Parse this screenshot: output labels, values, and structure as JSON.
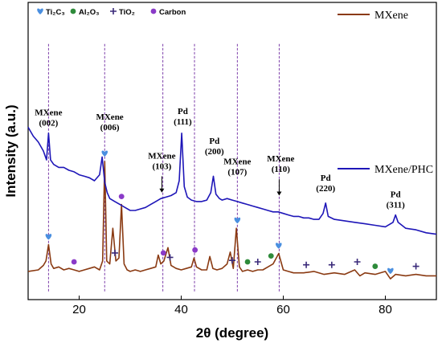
{
  "chart_data": {
    "type": "line",
    "xlabel": "2θ (degree)",
    "ylabel": "Intensity (a.u.)",
    "xlim": [
      10,
      90
    ],
    "xticks": [
      "20",
      "40",
      "60",
      "80"
    ],
    "xtick_values": [
      20,
      40,
      60,
      80
    ],
    "series": [
      {
        "name": "MXene",
        "color": "#8a3a12",
        "x": [
          10,
          12,
          13,
          13.5,
          14,
          14.5,
          15,
          16,
          17,
          18,
          19,
          20,
          21,
          22,
          23,
          24,
          24.6,
          25,
          25.4,
          26,
          26.6,
          27.2,
          27.8,
          28.3,
          28.8,
          29.4,
          30,
          31,
          32,
          33,
          34,
          35,
          35.5,
          36,
          36.6,
          37.4,
          38,
          39,
          40,
          41,
          42,
          42.5,
          43,
          44,
          45,
          45.6,
          46.2,
          47,
          48,
          49,
          49.6,
          50.2,
          50.8,
          51.4,
          52,
          53,
          54,
          55,
          56,
          57,
          58,
          59.1,
          60,
          61,
          62,
          64,
          66,
          68,
          70,
          72,
          74,
          75,
          76,
          78,
          80,
          81,
          82,
          84,
          86,
          88,
          90
        ],
        "y": [
          0.905,
          0.9,
          0.885,
          0.87,
          0.815,
          0.88,
          0.895,
          0.89,
          0.9,
          0.895,
          0.9,
          0.905,
          0.9,
          0.895,
          0.89,
          0.9,
          0.87,
          0.535,
          0.87,
          0.88,
          0.76,
          0.87,
          0.86,
          0.68,
          0.88,
          0.9,
          0.905,
          0.9,
          0.905,
          0.9,
          0.895,
          0.89,
          0.85,
          0.88,
          0.87,
          0.825,
          0.885,
          0.895,
          0.9,
          0.895,
          0.89,
          0.86,
          0.89,
          0.9,
          0.9,
          0.855,
          0.895,
          0.9,
          0.895,
          0.88,
          0.84,
          0.895,
          0.76,
          0.89,
          0.905,
          0.9,
          0.905,
          0.9,
          0.9,
          0.89,
          0.88,
          0.845,
          0.9,
          0.905,
          0.91,
          0.91,
          0.905,
          0.915,
          0.91,
          0.915,
          0.9,
          0.92,
          0.91,
          0.915,
          0.905,
          0.93,
          0.915,
          0.92,
          0.915,
          0.92,
          0.92
        ]
      },
      {
        "name": "MXene/PHC",
        "color": "#1e16b8",
        "x": [
          10,
          11,
          12,
          13,
          13.6,
          14,
          14.4,
          15,
          16,
          17,
          18,
          19,
          20,
          21,
          22,
          23,
          24,
          24.5,
          25,
          25.5,
          26,
          27,
          28,
          29,
          30,
          31,
          32,
          33,
          34,
          35,
          36,
          37,
          38,
          39,
          39.6,
          40.1,
          40.6,
          41.2,
          42,
          43,
          44,
          45,
          45.8,
          46.3,
          46.8,
          47.5,
          48,
          49,
          50,
          51,
          52,
          53,
          54,
          55,
          56,
          57,
          58,
          59,
          60,
          61,
          62,
          63,
          64,
          65,
          66,
          67,
          67.8,
          68.3,
          68.8,
          70,
          72,
          74,
          76,
          78,
          80,
          81.5,
          82,
          82.5,
          84,
          86,
          88,
          90
        ],
        "y": [
          0.42,
          0.45,
          0.47,
          0.5,
          0.53,
          0.44,
          0.53,
          0.545,
          0.555,
          0.555,
          0.565,
          0.57,
          0.58,
          0.585,
          0.59,
          0.6,
          0.58,
          0.52,
          0.605,
          0.64,
          0.66,
          0.67,
          0.68,
          0.69,
          0.7,
          0.7,
          0.695,
          0.69,
          0.68,
          0.67,
          0.66,
          0.655,
          0.65,
          0.64,
          0.6,
          0.44,
          0.62,
          0.655,
          0.665,
          0.67,
          0.67,
          0.665,
          0.64,
          0.585,
          0.645,
          0.66,
          0.665,
          0.66,
          0.665,
          0.67,
          0.675,
          0.68,
          0.685,
          0.69,
          0.695,
          0.7,
          0.705,
          0.705,
          0.71,
          0.715,
          0.72,
          0.72,
          0.725,
          0.725,
          0.73,
          0.73,
          0.71,
          0.675,
          0.72,
          0.73,
          0.735,
          0.74,
          0.745,
          0.75,
          0.755,
          0.74,
          0.715,
          0.74,
          0.76,
          0.765,
          0.775,
          0.78
        ]
      }
    ],
    "legend": [
      {
        "label": "MXene",
        "color": "#8a3a12"
      },
      {
        "label": "MXene/PHC",
        "color": "#1e16b8"
      }
    ],
    "legend_placement": [
      "top-right",
      "middle-right"
    ],
    "phase_key": [
      {
        "label": "Ti₂C₃",
        "icon": "heart-icon",
        "color": "#4a8fe0"
      },
      {
        "label": "Al₂O₃",
        "icon": "circle-icon",
        "color": "#2e8b3a"
      },
      {
        "label": "TiO₂",
        "icon": "plus-icon",
        "color": "#3a2a7a"
      },
      {
        "label": "Carbon",
        "icon": "circle-icon",
        "color": "#8a3ac8"
      }
    ],
    "phase_markers": [
      {
        "phase": "Ti2C3",
        "x": 14
      },
      {
        "phase": "Ti2C3",
        "x": 25
      },
      {
        "phase": "Ti2C3",
        "x": 51
      },
      {
        "phase": "Ti2C3",
        "x": 59.1
      },
      {
        "phase": "Ti2C3",
        "x": 81
      },
      {
        "phase": "TiO2",
        "x": 27
      },
      {
        "phase": "TiO2",
        "x": 37.8
      },
      {
        "phase": "TiO2",
        "x": 50
      },
      {
        "phase": "TiO2",
        "x": 55
      },
      {
        "phase": "TiO2",
        "x": 64.5
      },
      {
        "phase": "TiO2",
        "x": 69.5
      },
      {
        "phase": "TiO2",
        "x": 74.5
      },
      {
        "phase": "TiO2",
        "x": 86
      },
      {
        "phase": "Al2O3",
        "x": 53
      },
      {
        "phase": "Al2O3",
        "x": 57.6
      },
      {
        "phase": "Al2O3",
        "x": 78
      },
      {
        "phase": "Carbon",
        "x": 19
      },
      {
        "phase": "Carbon",
        "x": 28.3
      },
      {
        "phase": "Carbon",
        "x": 36.5
      },
      {
        "phase": "Carbon",
        "x": 42.7
      }
    ],
    "peak_annotations": [
      {
        "lines": [
          "MXene",
          "(002)"
        ],
        "x": 14,
        "y": 0.38
      },
      {
        "lines": [
          "MXene",
          "(006)"
        ],
        "x": 26,
        "y": 0.395
      },
      {
        "lines": [
          "Pd",
          "(111)"
        ],
        "x": 40.3,
        "y": 0.375
      },
      {
        "lines": [
          "Pd",
          "(200)"
        ],
        "x": 46.5,
        "y": 0.475
      },
      {
        "lines": [
          "MXene",
          "(103)"
        ],
        "x": 36.2,
        "y": 0.525
      },
      {
        "lines": [
          "MXene",
          "(107)"
        ],
        "x": 51,
        "y": 0.545
      },
      {
        "lines": [
          "MXene",
          "(110)"
        ],
        "x": 59.5,
        "y": 0.535
      },
      {
        "lines": [
          "Pd",
          "(220)"
        ],
        "x": 68.3,
        "y": 0.6
      },
      {
        "lines": [
          "Pd",
          "(311)"
        ],
        "x": 82,
        "y": 0.655
      }
    ],
    "arrows": [
      {
        "x": 36.2,
        "y_from": 0.585,
        "y_to": 0.64
      },
      {
        "x": 59.2,
        "y_from": 0.595,
        "y_to": 0.65
      }
    ],
    "reference_lines_x": [
      14,
      25,
      36.4,
      42.6,
      51,
      59.2
    ],
    "grid": false
  }
}
